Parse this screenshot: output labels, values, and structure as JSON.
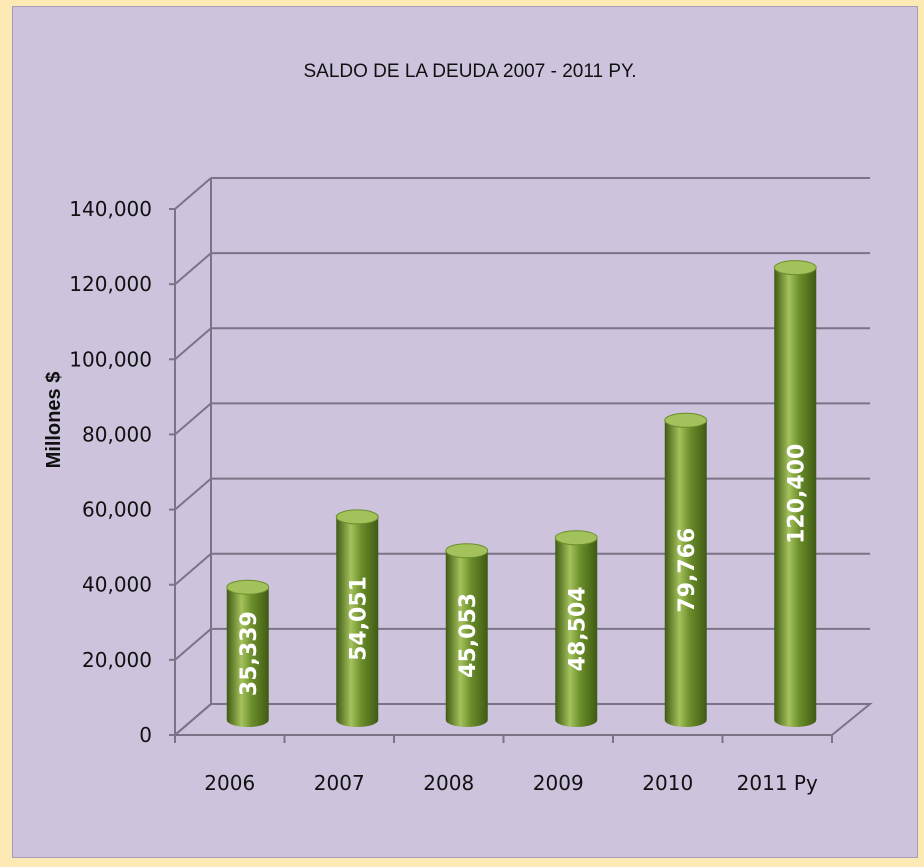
{
  "chart_data": {
    "type": "bar",
    "title": "SALDO  DE LA DEUDA 2007 - 2011 PY.",
    "ylabel": "Millones $",
    "xlabel": "",
    "categories": [
      "2006",
      "2007",
      "2008",
      "2009",
      "2010",
      "2011 Py"
    ],
    "series": [
      {
        "values": [
          35339,
          54051,
          45053,
          48504,
          79766,
          120400
        ]
      }
    ],
    "data_labels": [
      "35,339",
      "54,051",
      "45,053",
      "48,504",
      "79,766",
      "120,400"
    ],
    "ylim": [
      0,
      140000
    ],
    "y_ticks": [
      0,
      20000,
      40000,
      60000,
      80000,
      100000,
      120000,
      140000
    ],
    "y_tick_labels": [
      "0",
      "20,000",
      "40,000",
      "60,000",
      "80,000",
      "100,000",
      "120,000",
      "140,000"
    ],
    "grid": true,
    "legend": "none",
    "style": "3d-cylinder",
    "colors": {
      "bar": "#6b8e2a",
      "bar_highlight": "#a4c25c",
      "bar_dark": "#3f5a14",
      "plot_background": "#cdc3dd",
      "outer_background": "#fde9b4",
      "gridline": "#7a7486"
    }
  }
}
